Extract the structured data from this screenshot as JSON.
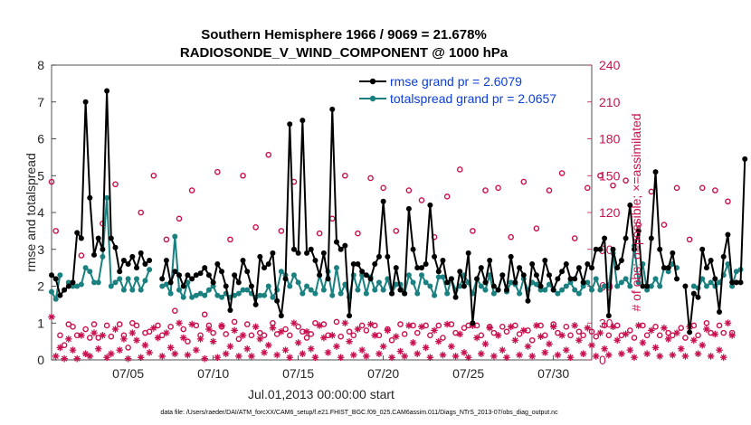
{
  "colors": {
    "rmse": "#000000",
    "totalspread": "#1a8080",
    "obs": "#c8104f",
    "legend_text": "#0c3ed8",
    "axis": "#262626"
  },
  "footnote": "data file: /Users/raeder/DAI/ATM_forcXX/CAM6_setup/f.e21.FHIST_BGC.f09_025.CAM6assim.011/Diags_NTrS_2013-07/obs_diag_output.nc",
  "chart_data": {
    "type": "line",
    "title": "Southern Hemisphere 1966 / 9069 = 21.678%",
    "subtitle": "RADIOSONDE_V_WIND_COMPONENT @ 1000 hPa",
    "xlabel": "Jul.01,2013 00:00:00 start",
    "ylabel": "rmse and totalspread",
    "ylabel_right": "# of obs: o=possible; ×=assimilated",
    "xlim": [
      0.5,
      32.25
    ],
    "ylim": [
      0,
      8
    ],
    "ylim_right": [
      0,
      240
    ],
    "x_ticks": [
      {
        "x": 5,
        "label": "07/05"
      },
      {
        "x": 10,
        "label": "07/10"
      },
      {
        "x": 15,
        "label": "07/15"
      },
      {
        "x": 20,
        "label": "07/20"
      },
      {
        "x": 25,
        "label": "07/25"
      },
      {
        "x": 30,
        "label": "07/30"
      }
    ],
    "y_ticks": [
      "0",
      "1",
      "2",
      "3",
      "4",
      "5",
      "6",
      "7",
      "8"
    ],
    "y_ticks_right": [
      "0",
      "30",
      "60",
      "90",
      "120",
      "150",
      "180",
      "210",
      "240"
    ],
    "x_start": 0.5,
    "x_step": 0.25,
    "legend": [
      {
        "label": "rmse grand pr = 2.6079",
        "series": "rmse"
      },
      {
        "label": "totalspread grand pr = 2.0657",
        "series": "totalspread"
      }
    ],
    "series": [
      {
        "name": "rmse",
        "values": [
          2.3,
          2.2,
          1.75,
          1.9,
          2.0,
          2.1,
          3.45,
          3.3,
          7.0,
          4.4,
          2.85,
          3.3,
          3.0,
          7.3,
          3.3,
          3.05,
          2.4,
          2.7,
          2.6,
          2.8,
          2.5,
          2.9,
          2.6,
          2.7,
          null,
          null,
          2.2,
          2.7,
          2.1,
          2.4,
          2.3,
          2.0,
          2.3,
          2.2,
          2.3,
          2.35,
          2.5,
          2.3,
          2.1,
          2.6,
          2.4,
          2.0,
          1.35,
          2.3,
          2.1,
          2.7,
          2.4,
          2.0,
          1.5,
          2.8,
          2.5,
          2.6,
          2.9,
          1.6,
          1.2,
          2.2,
          6.4,
          3.0,
          2.9,
          6.5,
          2.9,
          3.0,
          2.7,
          2.3,
          2.9,
          2.2,
          6.8,
          3.2,
          3.0,
          3.1,
          1.2,
          2.6,
          2.6,
          2.4,
          2.3,
          2.2,
          2.6,
          2.8,
          4.3,
          2.8,
          1.8,
          2.5,
          1.9,
          1.8,
          4.1,
          3.0,
          2.5,
          2.5,
          2.6,
          4.2,
          2.8,
          2.4,
          2.7,
          2.1,
          2.2,
          1.7,
          2.4,
          2.0,
          2.9,
          1.0,
          2.2,
          2.5,
          2.1,
          2.7,
          2.0,
          1.9,
          2.3,
          1.9,
          2.8,
          2.1,
          2.5,
          2.3,
          1.6,
          2.6,
          2.3,
          2.0,
          2.7,
          2.3,
          1.9,
          2.2,
          2.4,
          2.6,
          2.2,
          2.2,
          2.5,
          2.1,
          2.6,
          2.5,
          3.0,
          3.0,
          3.3,
          1.2,
          3.0,
          2.5,
          2.7,
          3.3,
          4.2,
          3.0,
          3.5,
          2.0,
          2.0,
          3.3,
          5.1,
          3.0,
          2.5,
          2.5,
          2.9,
          2.2,
          null,
          2.0,
          0.75,
          1.8,
          1.7,
          3.0,
          2.5,
          2.7,
          2.2,
          1.3,
          2.8,
          3.4,
          2.1,
          2.1,
          2.1,
          5.45
        ]
      },
      {
        "name": "totalspread",
        "values": [
          1.85,
          1.65,
          2.3,
          null,
          2.1,
          2.0,
          2.0,
          2.05,
          2.5,
          2.4,
          2.1,
          2.1,
          2.8,
          4.4,
          2.0,
          2.1,
          2.2,
          1.9,
          2.2,
          1.9,
          2.2,
          1.9,
          2.15,
          2.45,
          null,
          null,
          2.0,
          2.05,
          1.8,
          3.35,
          1.9,
          1.7,
          2.1,
          1.7,
          1.75,
          1.8,
          1.75,
          1.9,
          2.0,
          1.75,
          1.7,
          1.8,
          1.7,
          1.75,
          1.8,
          1.9,
          1.9,
          1.8,
          1.7,
          1.75,
          1.75,
          2.0,
          1.7,
          1.9,
          2.4,
          2.3,
          2.0,
          2.3,
          2.1,
          1.8,
          2.0,
          1.9,
          1.8,
          2.3,
          1.9,
          2.4,
          1.75,
          2.5,
          1.8,
          2.05,
          1.7,
          2.3,
          1.9,
          2.3,
          1.8,
          2.25,
          1.9,
          2.1,
          1.9,
          2.2,
          1.8,
          2.05,
          2.05,
          1.8,
          2.3,
          2.1,
          1.8,
          2.3,
          2.1,
          2.0,
          1.75,
          2.25,
          2.25,
          1.8,
          2.2,
          1.9,
          2.0,
          2.3,
          2.1,
          1.8,
          2.2,
          2.0,
          1.9,
          2.3,
          1.8,
          1.9,
          2.3,
          1.85,
          2.1,
          2.05,
          1.8,
          2.2,
          1.9,
          2.1,
          2.05,
          1.9,
          1.9,
          2.05,
          1.9,
          1.8,
          1.9,
          2.0,
          2.1,
          1.9,
          1.8,
          2.0,
          2.1,
          1.9,
          2.2,
          1.9,
          2.0,
          2.0,
          2.9,
          2.0,
          2.1,
          2.2,
          2.0,
          3.1,
          2.1,
          2.6,
          1.9,
          2.0,
          2.2,
          2.0,
          2.5,
          2.4,
          2.6,
          2.5,
          null,
          null,
          null,
          2.0,
          1.95,
          2.2,
          2.0,
          2.1,
          2.0,
          2.1,
          2.3,
          2.6,
          2.0,
          2.4,
          2.45
        ]
      },
      {
        "name": "possible",
        "values": [
          145,
          105,
          20,
          12,
          29,
          27,
          20,
          85,
          25,
          18,
          29,
          18,
          111,
          28,
          19,
          143,
          29,
          20,
          10,
          30,
          28,
          120,
          22,
          23,
          150,
          28,
          20,
          98,
          27,
          40,
          115,
          25,
          15,
          138,
          28,
          20,
          37,
          28,
          22,
          153,
          27,
          21,
          98,
          31,
          17,
          150,
          29,
          20,
          108,
          22,
          20,
          167,
          30,
          21,
          105,
          25,
          20,
          145,
          27,
          23,
          18,
          21,
          30,
          103,
          29,
          20,
          115,
          31,
          19,
          150,
          23,
          20,
          103,
          28,
          24,
          148,
          28,
          20,
          140,
          25,
          16,
          105,
          29,
          21,
          138,
          28,
          22,
          130,
          28,
          20,
          100,
          28,
          18,
          133,
          29,
          22,
          155,
          26,
          28,
          105,
          28,
          20,
          138,
          27,
          22,
          140,
          27,
          23,
          100,
          28,
          21,
          145,
          24,
          16,
          107,
          28,
          20,
          138,
          29,
          22,
          152,
          27,
          20,
          99,
          23,
          20,
          140,
          23,
          19,
          150,
          28,
          20,
          142,
          28,
          20,
          146,
          24,
          18,
          110,
          28,
          20,
          137,
          27,
          20,
          110,
          22,
          20,
          140,
          26,
          18,
          98,
          28,
          20,
          140,
          30,
          22,
          138,
          28,
          22,
          129,
          22
        ]
      },
      {
        "name": "assimilated",
        "values": [
          35,
          3,
          10,
          1,
          17,
          8,
          1,
          20,
          5,
          3,
          22,
          9,
          20,
          2,
          5,
          25,
          8,
          17,
          1,
          22,
          16,
          2,
          12,
          6,
          26,
          18,
          3,
          22,
          10,
          5,
          30,
          18,
          4,
          29,
          8,
          17,
          1,
          25,
          15,
          2,
          28,
          5,
          11,
          24,
          3,
          20,
          9,
          3,
          27,
          17,
          6,
          12,
          26,
          4,
          23,
          8,
          2,
          30,
          14,
          5,
          23,
          9,
          2,
          28,
          18,
          6,
          20,
          11,
          2,
          30,
          15,
          4,
          25,
          8,
          3,
          29,
          20,
          5,
          11,
          24,
          2,
          19,
          7,
          3,
          28,
          14,
          5,
          27,
          10,
          2,
          24,
          15,
          4,
          29,
          11,
          3,
          21,
          6,
          2,
          28,
          18,
          5,
          13,
          26,
          3,
          20,
          8,
          2,
          27,
          16,
          4,
          24,
          11,
          3,
          28,
          19,
          6,
          13,
          27,
          4,
          20,
          8,
          2,
          28,
          16,
          5,
          26,
          12,
          3,
          22,
          9,
          4,
          27,
          16,
          5,
          21,
          8,
          2,
          28,
          14,
          5,
          24,
          10,
          3,
          26,
          17,
          4,
          22,
          9,
          3,
          27,
          16,
          5,
          12,
          25,
          3,
          21,
          8,
          2,
          30,
          20
        ]
      }
    ]
  }
}
